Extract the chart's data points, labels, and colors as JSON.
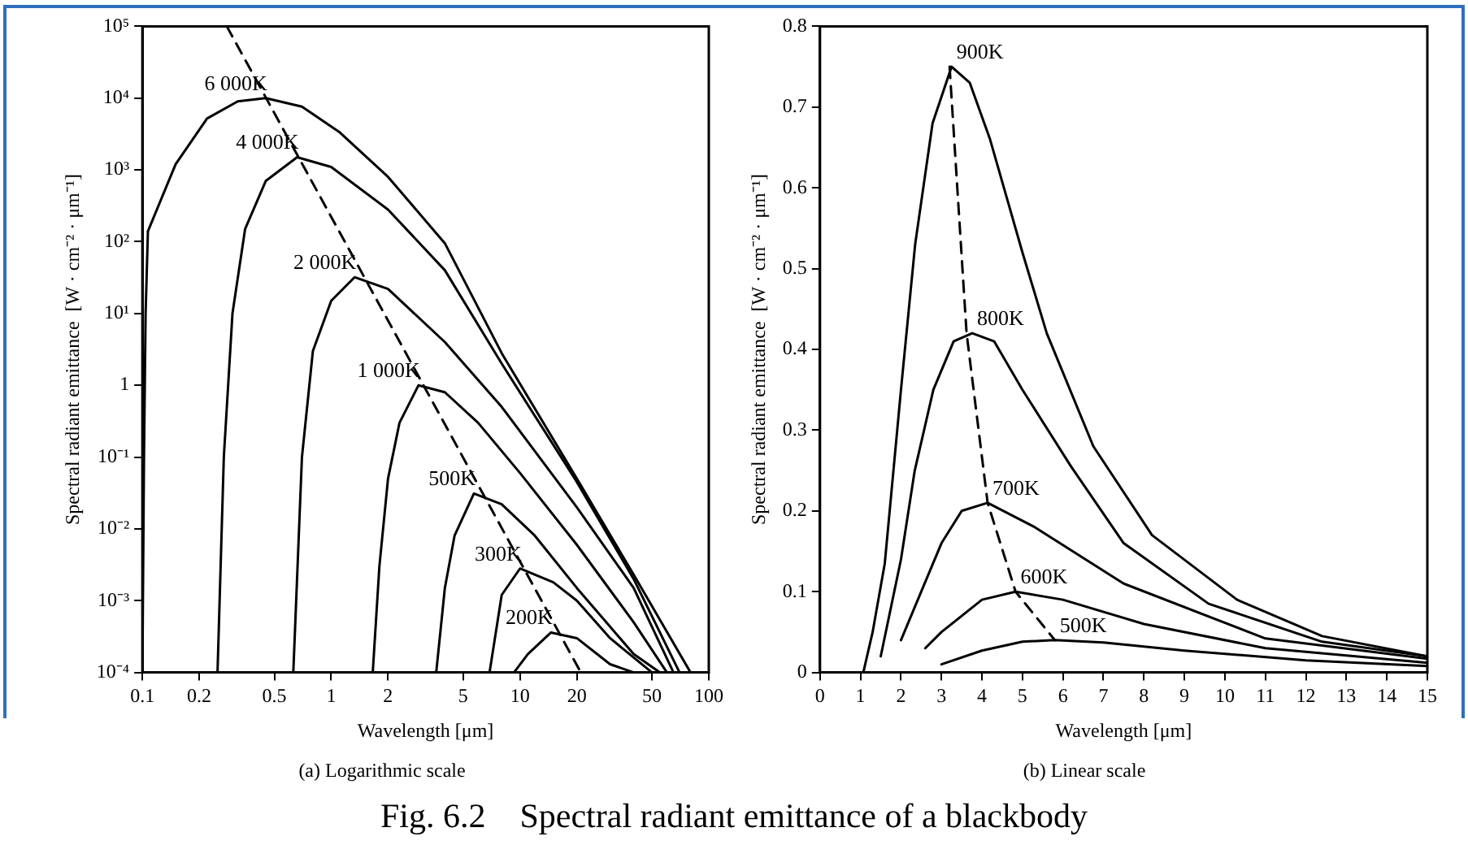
{
  "chart_data": [
    {
      "type": "line",
      "subtitle": "(a) Logarithmic scale",
      "xlabel": "Wavelength [μm]",
      "ylabel": "Spectral radiant emittance  [W · cm⁻² · μm⁻¹]",
      "log": "xy",
      "grid": false,
      "legend": false,
      "marker": "none",
      "line_style": "solid",
      "xlim": [
        0.1,
        100
      ],
      "xticks": [
        0.1,
        0.2,
        0.5,
        1,
        2,
        5,
        10,
        20,
        50,
        100
      ],
      "ylim": [
        0.0001,
        100000
      ],
      "yticks": [
        {
          "value": 0.0001,
          "label": "10⁻⁴"
        },
        {
          "value": 0.001,
          "label": "10⁻³"
        },
        {
          "value": 0.01,
          "label": "10⁻²"
        },
        {
          "value": 0.1,
          "label": "10⁻¹"
        },
        {
          "value": 1,
          "label": "1"
        },
        {
          "value": 10,
          "label": "10¹"
        },
        {
          "value": 100,
          "label": "10²"
        },
        {
          "value": 1000,
          "label": "10³"
        },
        {
          "value": 10000,
          "label": "10⁴"
        },
        {
          "value": 100000,
          "label": "10⁵"
        }
      ],
      "annotations": [
        "Fig. 6.2    Spectral radiant emittance of a blackbody"
      ],
      "series": [
        {
          "name": "6 000K",
          "color": "#000000",
          "x": [
            0.1,
            0.102,
            0.104,
            0.107,
            0.15,
            0.22,
            0.32,
            0.45,
            0.7,
            1.1,
            2,
            4,
            8,
            20,
            40,
            80
          ],
          "values": [
            0.0001,
            0.1,
            10,
            140,
            1200,
            5200,
            9000,
            10000,
            7600,
            3400,
            800,
            95,
            2.8,
            0.05,
            0.0023,
            0.0001
          ]
        },
        {
          "name": "4 000K",
          "color": "#000000",
          "x": [
            0.25,
            0.27,
            0.3,
            0.35,
            0.45,
            0.66,
            1,
            2,
            4,
            8,
            20,
            40,
            70
          ],
          "values": [
            0.0001,
            0.1,
            10,
            150,
            700,
            1500,
            1100,
            280,
            40,
            2,
            0.045,
            0.002,
            0.0001
          ]
        },
        {
          "name": "2 000K",
          "color": "#000000",
          "x": [
            0.63,
            0.7,
            0.8,
            1,
            1.33,
            2,
            4,
            8,
            20,
            40,
            65
          ],
          "values": [
            0.0001,
            0.1,
            3,
            15,
            32,
            22,
            4,
            0.5,
            0.02,
            0.0015,
            0.0001
          ]
        },
        {
          "name": "1 000K",
          "color": "#000000",
          "x": [
            1.66,
            1.8,
            2,
            2.3,
            2.9,
            4,
            6,
            10,
            20,
            40,
            60
          ],
          "values": [
            0.0001,
            0.003,
            0.05,
            0.3,
            1,
            0.8,
            0.3,
            0.06,
            0.006,
            0.0005,
            0.0001
          ]
        },
        {
          "name": "500K",
          "color": "#000000",
          "x": [
            3.6,
            4,
            4.5,
            5.7,
            8,
            12,
            20,
            40,
            55
          ],
          "values": [
            0.0001,
            0.0015,
            0.008,
            0.031,
            0.022,
            0.008,
            0.0015,
            0.00018,
            0.0001
          ]
        },
        {
          "name": "300K",
          "color": "#000000",
          "x": [
            6.9,
            8,
            10,
            15,
            20,
            30,
            50
          ],
          "values": [
            0.0001,
            0.0012,
            0.0028,
            0.0018,
            0.001,
            0.0003,
            0.0001
          ]
        },
        {
          "name": "200K",
          "color": "#000000",
          "x": [
            9.3,
            11,
            14.6,
            20,
            30,
            40
          ],
          "values": [
            0.0001,
            0.00018,
            0.00036,
            0.0003,
            0.00013,
            0.0001
          ]
        },
        {
          "color": "#000000",
          "line_style": "dashed",
          "x": [
            0.28,
            21
          ],
          "values": [
            100000,
            0.0001
          ]
        }
      ]
    },
    {
      "type": "line",
      "subtitle": "(b) Linear scale",
      "xlabel": "Wavelength [μm]",
      "ylabel": "Spectral radiant emittance  [W · cm⁻² · μm⁻¹]",
      "grid": false,
      "legend": false,
      "marker": "none",
      "line_style": "solid",
      "xlim": [
        0,
        15
      ],
      "xticks": [
        0,
        1,
        2,
        3,
        4,
        5,
        6,
        7,
        8,
        9,
        10,
        11,
        12,
        13,
        14,
        15
      ],
      "ylim": [
        0,
        0.8
      ],
      "yticks": [
        0,
        0.1,
        0.2,
        0.3,
        0.4,
        0.5,
        0.6,
        0.7,
        0.8
      ],
      "series": [
        {
          "name": "900K",
          "color": "#000000",
          "x": [
            1.07,
            1.3,
            1.6,
            2,
            2.35,
            2.78,
            3.25,
            3.7,
            4.2,
            5,
            5.6,
            6.75,
            8.2,
            10.3,
            12.4,
            15
          ],
          "values": [
            0,
            0.05,
            0.135,
            0.35,
            0.53,
            0.68,
            0.75,
            0.73,
            0.66,
            0.52,
            0.42,
            0.28,
            0.17,
            0.09,
            0.045,
            0.02
          ]
        },
        {
          "name": "800K",
          "color": "#000000",
          "x": [
            1.5,
            2,
            2.34,
            2.8,
            3.3,
            3.76,
            4.3,
            5,
            6.2,
            7.5,
            9.6,
            12.4,
            15
          ],
          "values": [
            0.02,
            0.14,
            0.25,
            0.35,
            0.41,
            0.42,
            0.41,
            0.35,
            0.255,
            0.16,
            0.085,
            0.038,
            0.02
          ]
        },
        {
          "name": "700K",
          "color": "#000000",
          "x": [
            2,
            2.5,
            3,
            3.5,
            4.14,
            5.3,
            7.5,
            11,
            15
          ],
          "values": [
            0.04,
            0.1,
            0.16,
            0.2,
            0.21,
            0.18,
            0.11,
            0.042,
            0.017
          ]
        },
        {
          "name": "600K",
          "color": "#000000",
          "x": [
            2.6,
            3,
            4,
            4.83,
            6,
            8,
            11,
            15
          ],
          "values": [
            0.03,
            0.05,
            0.09,
            0.1,
            0.09,
            0.06,
            0.03,
            0.012
          ]
        },
        {
          "name": "500K",
          "color": "#000000",
          "x": [
            3,
            4,
            5,
            5.8,
            7,
            9,
            12,
            15
          ],
          "values": [
            0.01,
            0.027,
            0.038,
            0.04,
            0.037,
            0.027,
            0.015,
            0.008
          ]
        },
        {
          "color": "#000000",
          "line_style": "dashed",
          "x": [
            3.2,
            3.62,
            4.14,
            4.83,
            5.8
          ],
          "values": [
            0.75,
            0.42,
            0.21,
            0.1,
            0.04
          ]
        }
      ]
    }
  ]
}
